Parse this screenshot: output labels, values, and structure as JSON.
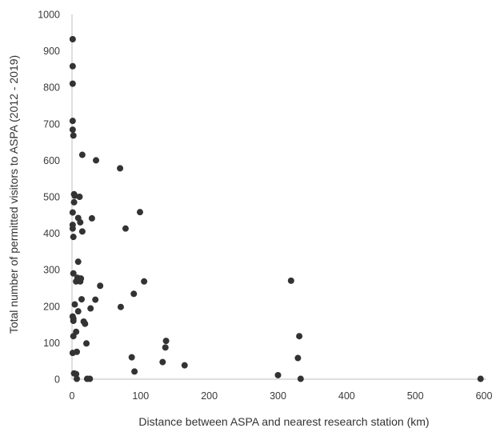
{
  "chart_data": {
    "type": "scatter",
    "title": "",
    "xlabel": "Distance between ASPA and nearest research station (km)",
    "ylabel": "Total number of permitted visitors to ASPA (2012 - 2019)",
    "xlim": [
      0,
      600
    ],
    "ylim": [
      0,
      1000
    ],
    "xticks": [
      0,
      100,
      200,
      300,
      400,
      500,
      600
    ],
    "yticks": [
      0,
      100,
      200,
      300,
      400,
      500,
      600,
      700,
      800,
      900,
      1000
    ],
    "grid": false,
    "legend": "none",
    "marker_color": "#333333",
    "axis_color": "#bfbfbf",
    "points": [
      {
        "x": 1,
        "y": 932
      },
      {
        "x": 1,
        "y": 858
      },
      {
        "x": 1,
        "y": 810
      },
      {
        "x": 1,
        "y": 708
      },
      {
        "x": 1,
        "y": 684
      },
      {
        "x": 2,
        "y": 668
      },
      {
        "x": 15,
        "y": 615
      },
      {
        "x": 35,
        "y": 600
      },
      {
        "x": 70,
        "y": 578
      },
      {
        "x": 3,
        "y": 507
      },
      {
        "x": 4,
        "y": 503
      },
      {
        "x": 11,
        "y": 500
      },
      {
        "x": 3,
        "y": 485
      },
      {
        "x": 1,
        "y": 457
      },
      {
        "x": 99,
        "y": 458
      },
      {
        "x": 9,
        "y": 442
      },
      {
        "x": 29,
        "y": 441
      },
      {
        "x": 12,
        "y": 430
      },
      {
        "x": 1,
        "y": 423
      },
      {
        "x": 1,
        "y": 413
      },
      {
        "x": 78,
        "y": 413
      },
      {
        "x": 15,
        "y": 405
      },
      {
        "x": 2,
        "y": 390
      },
      {
        "x": 9,
        "y": 322
      },
      {
        "x": 2,
        "y": 290
      },
      {
        "x": 8,
        "y": 278
      },
      {
        "x": 13,
        "y": 276
      },
      {
        "x": 6,
        "y": 268
      },
      {
        "x": 12,
        "y": 268
      },
      {
        "x": 105,
        "y": 268
      },
      {
        "x": 319,
        "y": 270
      },
      {
        "x": 41,
        "y": 256
      },
      {
        "x": 90,
        "y": 234
      },
      {
        "x": 14,
        "y": 219
      },
      {
        "x": 34,
        "y": 218
      },
      {
        "x": 4,
        "y": 205
      },
      {
        "x": 71,
        "y": 198
      },
      {
        "x": 27,
        "y": 194
      },
      {
        "x": 9,
        "y": 186
      },
      {
        "x": 1,
        "y": 172
      },
      {
        "x": 2,
        "y": 166
      },
      {
        "x": 2,
        "y": 160
      },
      {
        "x": 17,
        "y": 158
      },
      {
        "x": 19,
        "y": 152
      },
      {
        "x": 6,
        "y": 130
      },
      {
        "x": 2,
        "y": 118
      },
      {
        "x": 331,
        "y": 118
      },
      {
        "x": 137,
        "y": 105
      },
      {
        "x": 21,
        "y": 98
      },
      {
        "x": 136,
        "y": 87
      },
      {
        "x": 7,
        "y": 75
      },
      {
        "x": 1,
        "y": 72
      },
      {
        "x": 87,
        "y": 60
      },
      {
        "x": 329,
        "y": 58
      },
      {
        "x": 132,
        "y": 47
      },
      {
        "x": 164,
        "y": 38
      },
      {
        "x": 91,
        "y": 21
      },
      {
        "x": 3,
        "y": 16
      },
      {
        "x": 6,
        "y": 14
      },
      {
        "x": 300,
        "y": 11
      },
      {
        "x": 7,
        "y": 1
      },
      {
        "x": 22,
        "y": 1
      },
      {
        "x": 26,
        "y": 1
      },
      {
        "x": 333,
        "y": 1
      },
      {
        "x": 595,
        "y": 1
      }
    ]
  }
}
